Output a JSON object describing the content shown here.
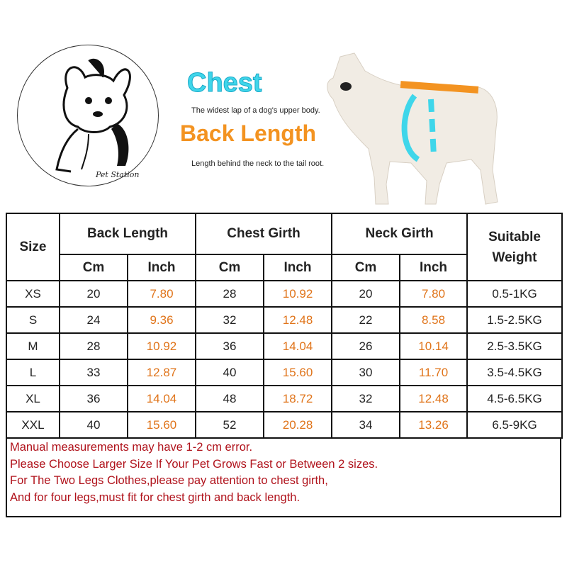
{
  "logo": {
    "brand": "Pet Station"
  },
  "legend": {
    "chest_title": "Chest",
    "chest_desc": "The widest lap of a dog's upper body.",
    "back_title": "Back Length",
    "back_desc": "Length behind the neck to the tail root.",
    "colors": {
      "chest": "#3fd6ea",
      "back": "#f39321"
    }
  },
  "table": {
    "headers": {
      "size": "Size",
      "back_length": "Back Length",
      "chest_girth": "Chest Girth",
      "neck_girth": "Neck Girth",
      "weight": "Suitable Weight",
      "cm": "Cm",
      "inch": "Inch"
    },
    "rows": [
      {
        "size": "XS",
        "back_cm": "20",
        "back_in": "7.80",
        "chest_cm": "28",
        "chest_in": "10.92",
        "neck_cm": "20",
        "neck_in": "7.80",
        "weight": "0.5-1KG"
      },
      {
        "size": "S",
        "back_cm": "24",
        "back_in": "9.36",
        "chest_cm": "32",
        "chest_in": "12.48",
        "neck_cm": "22",
        "neck_in": "8.58",
        "weight": "1.5-2.5KG"
      },
      {
        "size": "M",
        "back_cm": "28",
        "back_in": "10.92",
        "chest_cm": "36",
        "chest_in": "14.04",
        "neck_cm": "26",
        "neck_in": "10.14",
        "weight": "2.5-3.5KG"
      },
      {
        "size": "L",
        "back_cm": "33",
        "back_in": "12.87",
        "chest_cm": "40",
        "chest_in": "15.60",
        "neck_cm": "30",
        "neck_in": "11.70",
        "weight": "3.5-4.5KG"
      },
      {
        "size": "XL",
        "back_cm": "36",
        "back_in": "14.04",
        "chest_cm": "48",
        "chest_in": "18.72",
        "neck_cm": "32",
        "neck_in": "12.48",
        "weight": "4.5-6.5KG"
      },
      {
        "size": "XXL",
        "back_cm": "40",
        "back_in": "15.60",
        "chest_cm": "52",
        "chest_in": "20.28",
        "neck_cm": "34",
        "neck_in": "13.26",
        "weight": "6.5-9KG"
      }
    ]
  },
  "notes": [
    "Manual measurements may have 1-2 cm error.",
    "Please Choose Larger Size If Your Pet Grows Fast or Between 2 sizes.",
    "For The Two Legs Clothes,please pay attention to chest girth,",
    "And for four legs,must fit for chest girth and back length."
  ]
}
